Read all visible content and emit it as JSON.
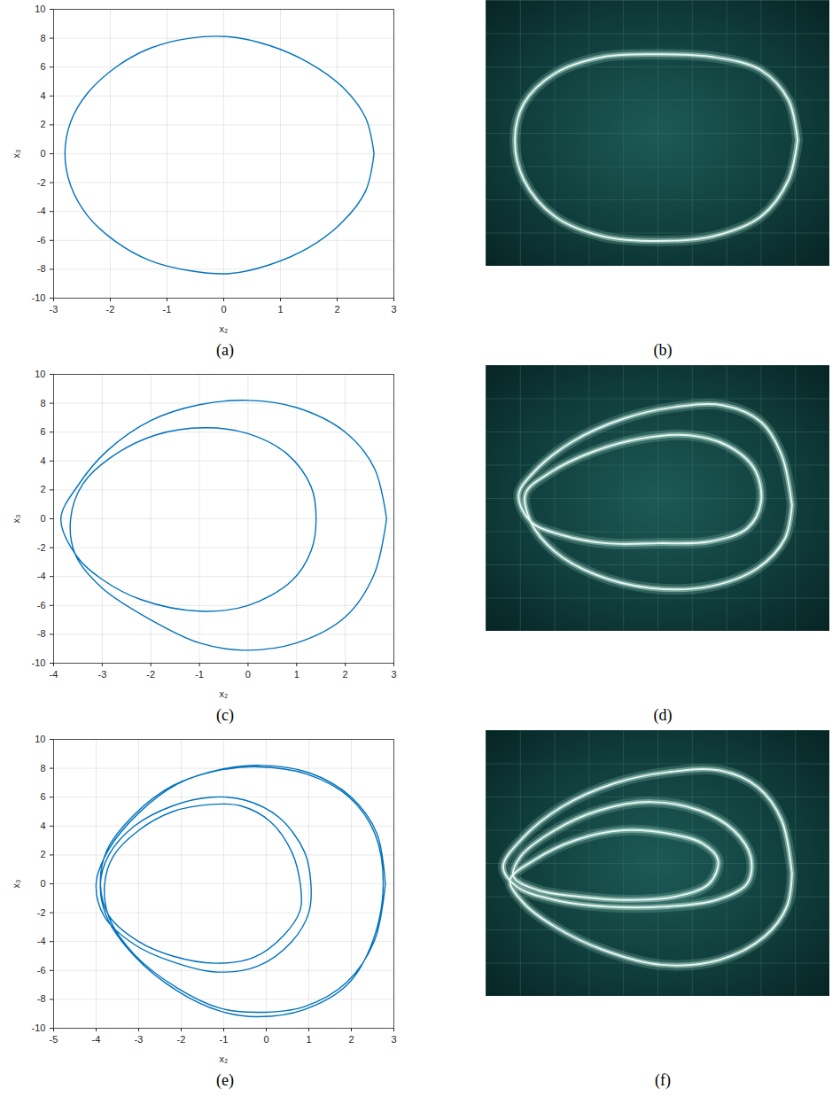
{
  "chart_data": [
    {
      "type": "line",
      "title": "(a)",
      "x_label": "x₂",
      "y_label": "x₃",
      "color": "#0072bd",
      "grid": true,
      "xlim": [
        -3,
        3
      ],
      "ylim": [
        -10,
        10
      ],
      "xticks": [
        -3,
        -2,
        -1,
        0,
        1,
        2,
        3
      ],
      "yticks": [
        -10,
        -8,
        -6,
        -4,
        -2,
        0,
        2,
        4,
        6,
        8,
        10
      ],
      "x": [
        2.65,
        2.5,
        2.1,
        1.5,
        0.8,
        0.1,
        -0.6,
        -1.3,
        -1.9,
        -2.4,
        -2.7,
        -2.8,
        -2.7,
        -2.4,
        -1.9,
        -1.3,
        -0.6,
        0.1,
        0.8,
        1.5,
        2.1,
        2.5,
        2.65
      ],
      "values": [
        0,
        2.5,
        4.6,
        6.3,
        7.5,
        8.1,
        8.0,
        7.3,
        6.0,
        4.2,
        2.2,
        0,
        -2.2,
        -4.3,
        -6.1,
        -7.4,
        -8.1,
        -8.3,
        -7.7,
        -6.5,
        -4.7,
        -2.6,
        0
      ]
    },
    {
      "type": "line",
      "title": "(b)",
      "color": "#c4f2e4",
      "grid": true,
      "tick_labels": false,
      "xlim": [
        -5,
        5
      ],
      "ylim": [
        -4,
        4
      ],
      "xticks": [
        -5,
        -4,
        -3,
        -2,
        -1,
        0,
        1,
        2,
        3,
        4,
        5
      ],
      "yticks": [
        -4,
        -3,
        -2,
        -1,
        0,
        1,
        2,
        3,
        4
      ],
      "x": [
        4.06,
        3.8,
        3.0,
        1.6,
        0,
        -1.6,
        -3.0,
        -3.9,
        -4.16,
        -3.9,
        -3.0,
        -1.6,
        0,
        1.6,
        3.0,
        3.8,
        4.06
      ],
      "values": [
        -0.2,
        1.0,
        1.9,
        2.3,
        2.38,
        2.3,
        1.8,
        0.9,
        -0.2,
        -1.4,
        -2.5,
        -3.1,
        -3.24,
        -3.1,
        -2.5,
        -1.4,
        -0.2
      ]
    },
    {
      "type": "line",
      "title": "(c)",
      "x_label": "x₂",
      "y_label": "x₃",
      "color": "#0072bd",
      "grid": true,
      "xlim": [
        -4,
        3
      ],
      "ylim": [
        -10,
        10
      ],
      "xticks": [
        -4,
        -3,
        -2,
        -1,
        0,
        1,
        2,
        3
      ],
      "yticks": [
        -10,
        -8,
        -6,
        -4,
        -2,
        0,
        2,
        4,
        6,
        8,
        10
      ],
      "x": [
        2.85,
        2.6,
        2.0,
        1.0,
        0,
        -1.0,
        -2.0,
        -2.9,
        -3.5,
        -3.85,
        -3.5,
        -3.0,
        -2.2,
        -1.0,
        0,
        0.9,
        1.3,
        1.4,
        1.3,
        0.8,
        0,
        -0.9,
        -1.9,
        -2.8,
        -3.4,
        -3.65,
        -3.55,
        -3.0,
        -2.0,
        -1.0,
        -0.1,
        1.0,
        2.0,
        2.6,
        2.85
      ],
      "values": [
        0,
        3.5,
        6.0,
        7.7,
        8.2,
        7.9,
        6.8,
        4.7,
        2.3,
        0,
        -2.7,
        -4.2,
        -5.6,
        -6.4,
        -6.0,
        -4.3,
        -2.2,
        0,
        2.2,
        4.5,
        5.9,
        6.3,
        5.8,
        4.3,
        2.4,
        0,
        -2.5,
        -4.8,
        -7.0,
        -8.6,
        -9.1,
        -8.6,
        -6.8,
        -3.8,
        0
      ]
    },
    {
      "type": "line",
      "title": "(d)",
      "color": "#c4f2e4",
      "grid": true,
      "tick_labels": false,
      "xlim": [
        -5,
        5
      ],
      "ylim": [
        -4,
        4
      ],
      "xticks": [
        -5,
        -4,
        -3,
        -2,
        -1,
        0,
        1,
        2,
        3,
        4,
        5
      ],
      "yticks": [
        -4,
        -3,
        -2,
        -1,
        0,
        1,
        2,
        3,
        4
      ],
      "x": [
        3.9,
        3.6,
        3.0,
        1.9,
        0.5,
        -1.0,
        -2.5,
        -3.6,
        -4.05,
        -3.7,
        -2.8,
        -1.5,
        0,
        1.5,
        2.6,
        3.0,
        2.8,
        2.0,
        0.9,
        -0.5,
        -1.9,
        -3.1,
        -3.85,
        -3.7,
        -3.0,
        -1.8,
        -0.2,
        1.5,
        2.9,
        3.7,
        3.9
      ],
      "values": [
        -0.2,
        1.3,
        2.3,
        2.8,
        2.75,
        2.4,
        1.7,
        0.8,
        0.1,
        -0.7,
        -1.1,
        -1.35,
        -1.35,
        -1.3,
        -0.9,
        -0.1,
        0.9,
        1.6,
        1.9,
        1.8,
        1.4,
        0.8,
        0.15,
        -0.7,
        -1.6,
        -2.3,
        -2.7,
        -2.65,
        -2.1,
        -1.2,
        -0.2
      ]
    },
    {
      "type": "line",
      "title": "(e)",
      "x_label": "x₂",
      "y_label": "x₃",
      "color": "#0072bd",
      "grid": true,
      "xlim": [
        -5,
        3
      ],
      "ylim": [
        -10,
        10
      ],
      "xticks": [
        -5,
        -4,
        -3,
        -2,
        -1,
        0,
        1,
        2,
        3
      ],
      "yticks": [
        -10,
        -8,
        -6,
        -4,
        -2,
        0,
        2,
        4,
        6,
        8,
        10
      ],
      "x": [
        2.8,
        2.6,
        2.0,
        1.0,
        -0.1,
        -1.1,
        -2.1,
        -3.0,
        -3.7,
        -4.0,
        -3.8,
        -3.1,
        -2.3,
        -1.2,
        -0.2,
        0.6,
        1.0,
        1.05,
        0.9,
        0.3,
        -0.5,
        -1.3,
        -2.2,
        -3.1,
        -3.7,
        -3.9,
        -3.75,
        -3.1,
        -2.1,
        -1.1,
        -0.2,
        0.9,
        1.9,
        2.5,
        2.75,
        2.55,
        1.95,
        0.95,
        -0.2,
        -1.2,
        -2.2,
        -3.1,
        -3.75,
        -3.9,
        -3.7,
        -3.0,
        -2.2,
        -1.2,
        -0.3,
        0.4,
        0.8,
        0.8,
        0.6,
        0.1,
        -0.6,
        -1.3,
        -2.2,
        -3.0,
        -3.6,
        -3.8,
        -3.7,
        -3.1,
        -2.1,
        -1.1,
        -0.2,
        0.9,
        1.9,
        2.55,
        2.8
      ],
      "values": [
        0,
        3.5,
        6.0,
        7.7,
        8.2,
        7.9,
        6.9,
        4.9,
        2.4,
        0,
        -2.3,
        -4.2,
        -5.3,
        -6.1,
        -5.7,
        -4.0,
        -2.0,
        0,
        2.2,
        4.6,
        5.8,
        6.0,
        5.4,
        4.0,
        2.0,
        0,
        -2.3,
        -5.0,
        -7.4,
        -8.8,
        -9.2,
        -8.7,
        -7.0,
        -4.0,
        0,
        3.5,
        6.0,
        7.6,
        8.1,
        7.8,
        6.8,
        4.8,
        2.3,
        0,
        -2.2,
        -4.0,
        -5.0,
        -5.5,
        -5.1,
        -3.6,
        -1.8,
        0,
        2.2,
        4.3,
        5.4,
        5.5,
        5.0,
        3.7,
        1.9,
        0,
        -2.3,
        -4.9,
        -7.2,
        -8.6,
        -8.9,
        -8.5,
        -6.8,
        -3.9,
        0
      ]
    },
    {
      "type": "line",
      "title": "(f)",
      "color": "#c4f2e4",
      "grid": true,
      "tick_labels": false,
      "xlim": [
        -5,
        5
      ],
      "ylim": [
        -4,
        4
      ],
      "xticks": [
        -5,
        -4,
        -3,
        -2,
        -1,
        0,
        1,
        2,
        3,
        4,
        5
      ],
      "yticks": [
        -4,
        -3,
        -2,
        -1,
        0,
        1,
        2,
        3,
        4
      ],
      "x": [
        3.9,
        3.6,
        2.9,
        1.8,
        0.3,
        -1.3,
        -2.8,
        -3.9,
        -4.5,
        -4.1,
        -3.0,
        -1.5,
        0.2,
        1.7,
        2.6,
        2.7,
        2.2,
        1.2,
        -0.2,
        -1.7,
        -3.0,
        -4.0,
        -4.2,
        -3.5,
        -2.3,
        -1.0,
        0.5,
        1.5,
        1.75,
        1.3,
        0.3,
        -1.0,
        -2.4,
        -3.6,
        -4.3,
        -3.9,
        -3.0,
        -1.6,
        0.1,
        1.8,
        3.1,
        3.75,
        3.9
      ],
      "values": [
        -0.3,
        1.3,
        2.3,
        2.8,
        2.75,
        2.4,
        1.7,
        0.8,
        -0.1,
        -0.7,
        -1.1,
        -1.3,
        -1.3,
        -1.1,
        -0.6,
        0.2,
        1.0,
        1.6,
        1.85,
        1.6,
        1.0,
        0.2,
        -0.4,
        -0.8,
        -1.0,
        -1.1,
        -1.0,
        -0.6,
        0.1,
        0.6,
        0.9,
        1.0,
        0.7,
        0.1,
        -0.5,
        -1.2,
        -1.9,
        -2.6,
        -3.05,
        -2.9,
        -2.2,
        -1.3,
        -0.3
      ]
    }
  ]
}
